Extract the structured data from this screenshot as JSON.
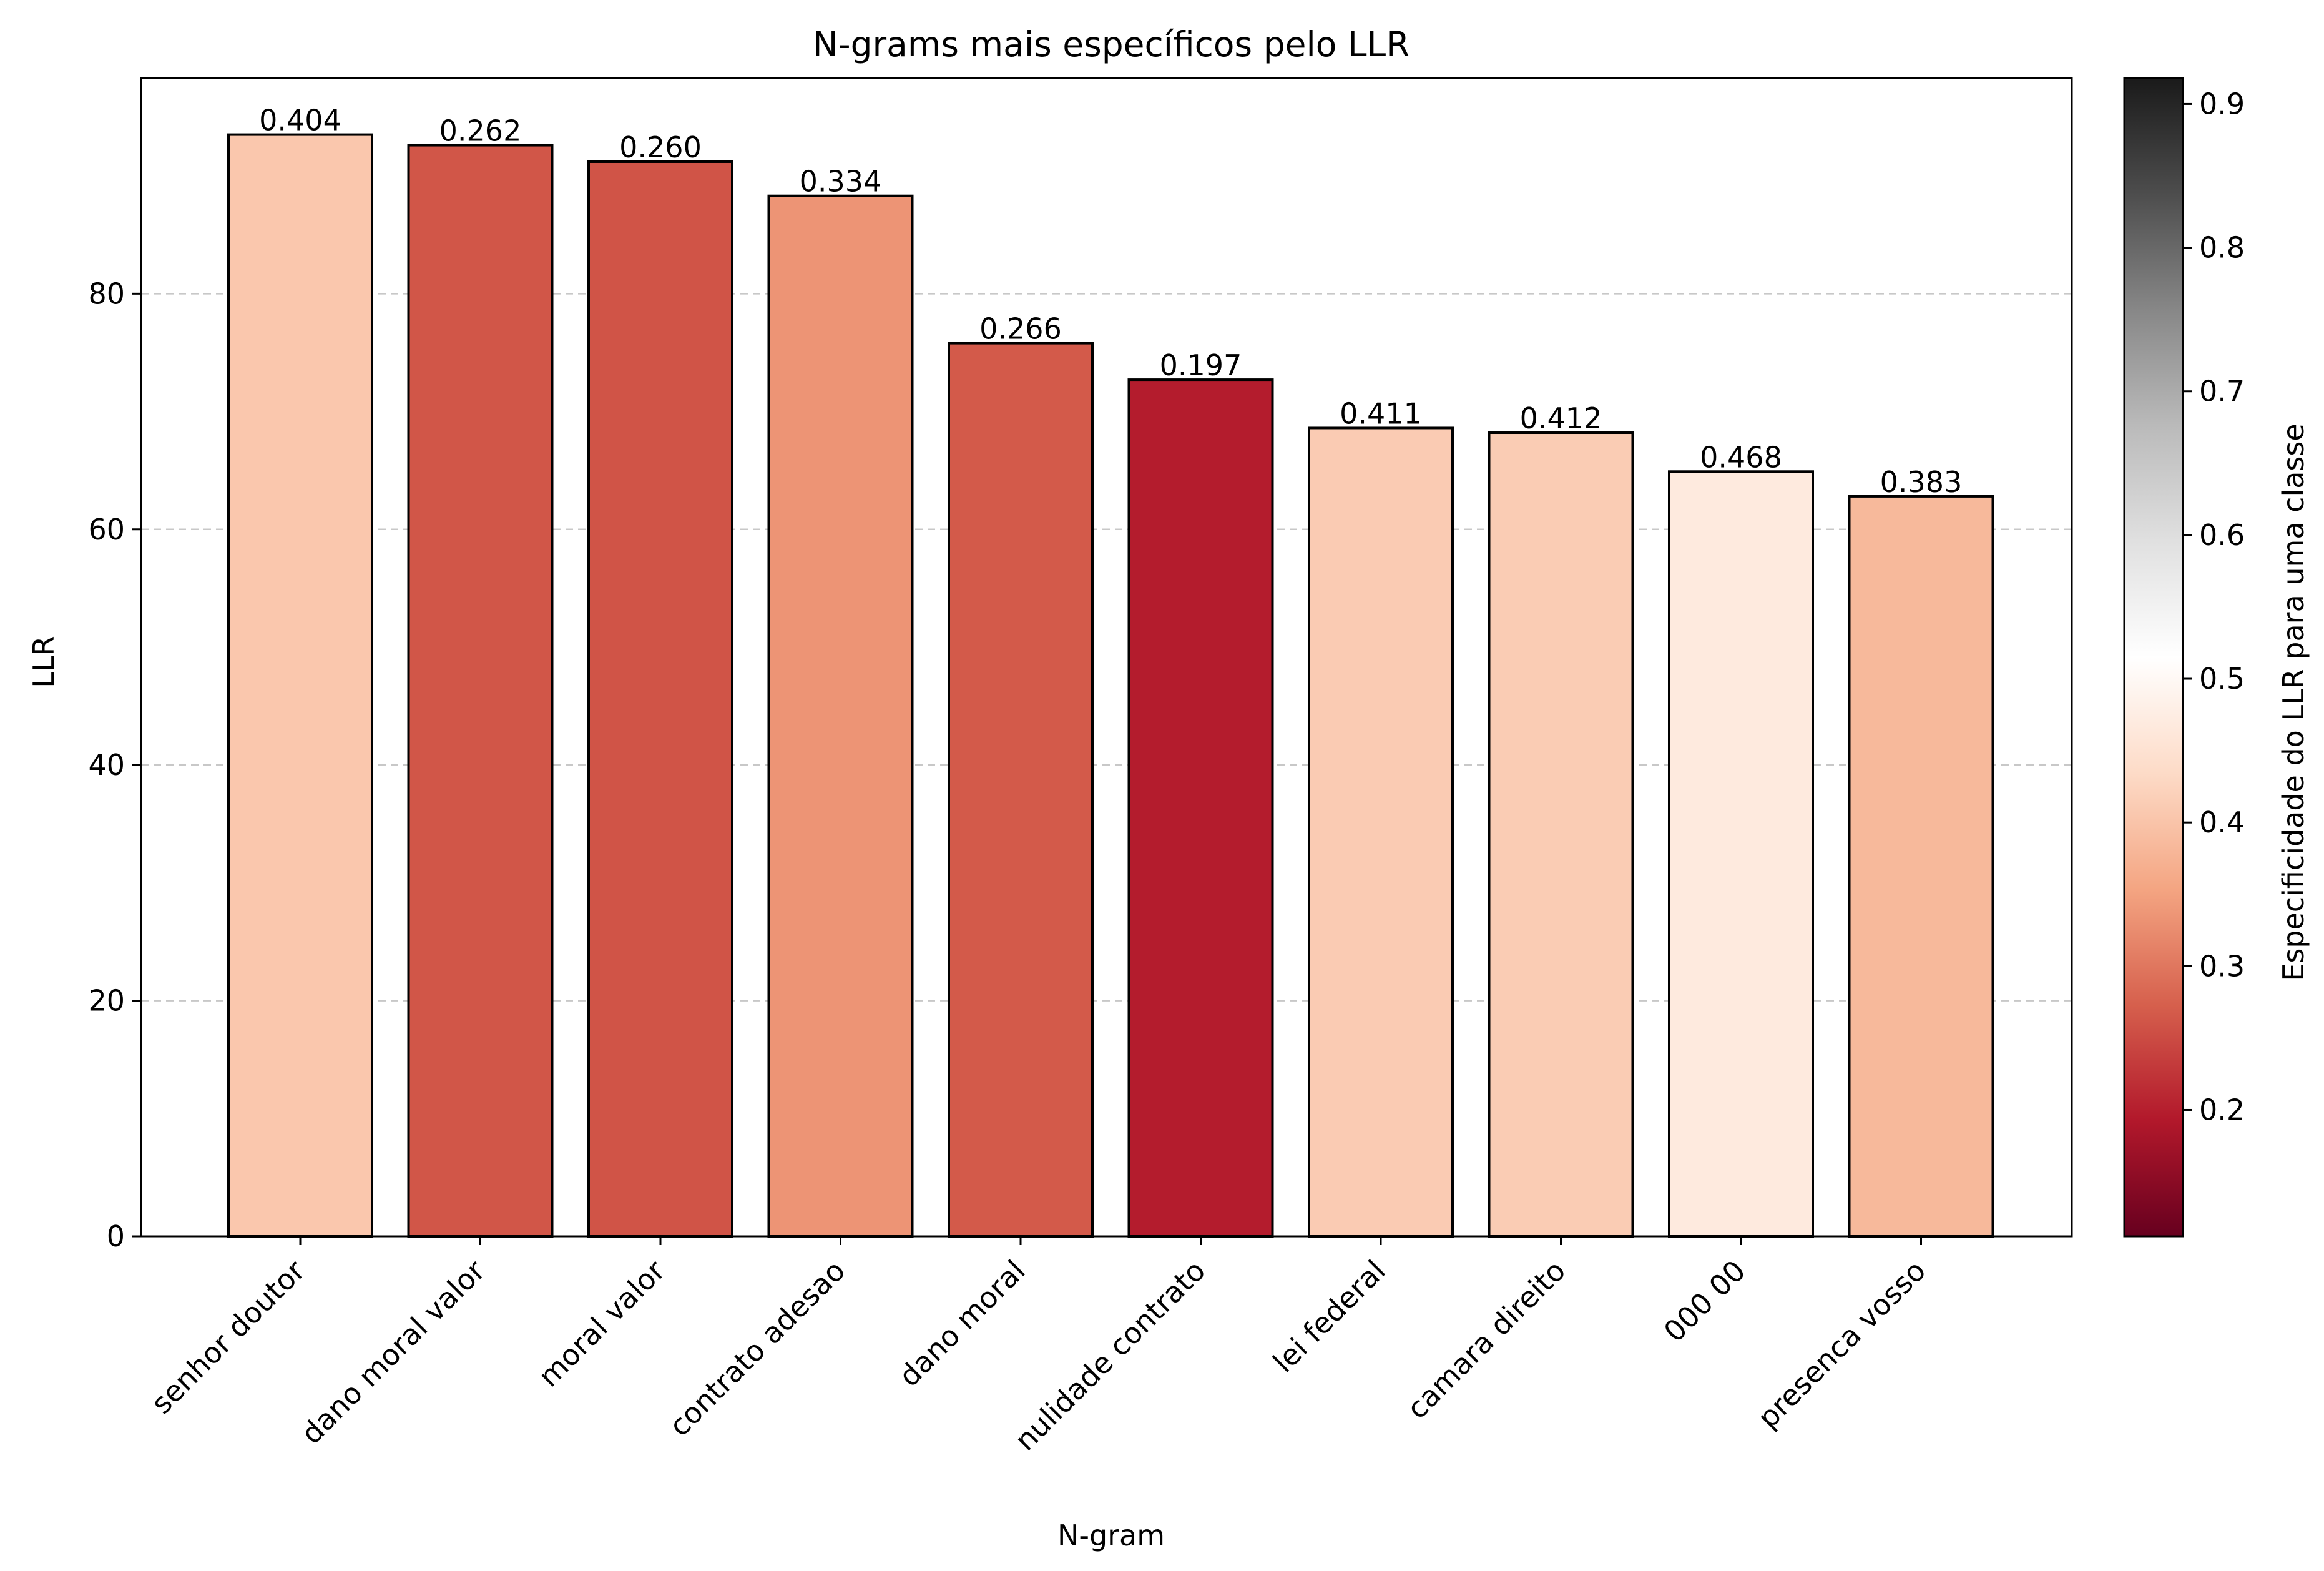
{
  "chart_data": {
    "type": "bar",
    "title": "N-grams mais específicos pelo LLR",
    "xlabel": "N-gram",
    "ylabel": "LLR",
    "categories": [
      "senhor doutor",
      "dano moral valor",
      "moral valor",
      "contrato adesao",
      "dano moral",
      "nulidade contrato",
      "lei federal",
      "camara direito",
      "000 00",
      "presenca vosso"
    ],
    "values": [
      93.5,
      92.6,
      91.2,
      88.3,
      75.8,
      72.7,
      68.6,
      68.2,
      64.9,
      62.8
    ],
    "bar_labels": [
      "0.404",
      "0.262",
      "0.260",
      "0.334",
      "0.266",
      "0.197",
      "0.411",
      "0.412",
      "0.468",
      "0.383"
    ],
    "specificity": [
      0.404,
      0.262,
      0.26,
      0.334,
      0.266,
      0.197,
      0.411,
      0.412,
      0.468,
      0.383
    ],
    "ylim": [
      0,
      98.3
    ],
    "yticks": [
      0,
      20,
      40,
      60,
      80
    ],
    "grid": "y-dashed",
    "colorbar": {
      "label": "Especificidade do LLR para uma classe",
      "range": [
        0.112,
        0.918
      ],
      "ticks": [
        0.2,
        0.3,
        0.4,
        0.5,
        0.6,
        0.7,
        0.8,
        0.9
      ],
      "colormap": "RdGy",
      "stops": [
        "#67001f",
        "#b2182b",
        "#d6604d",
        "#f4a582",
        "#fddbc7",
        "#ffffff",
        "#e0e0e0",
        "#bababa",
        "#878787",
        "#4d4d4d",
        "#1a1a1a"
      ]
    }
  }
}
